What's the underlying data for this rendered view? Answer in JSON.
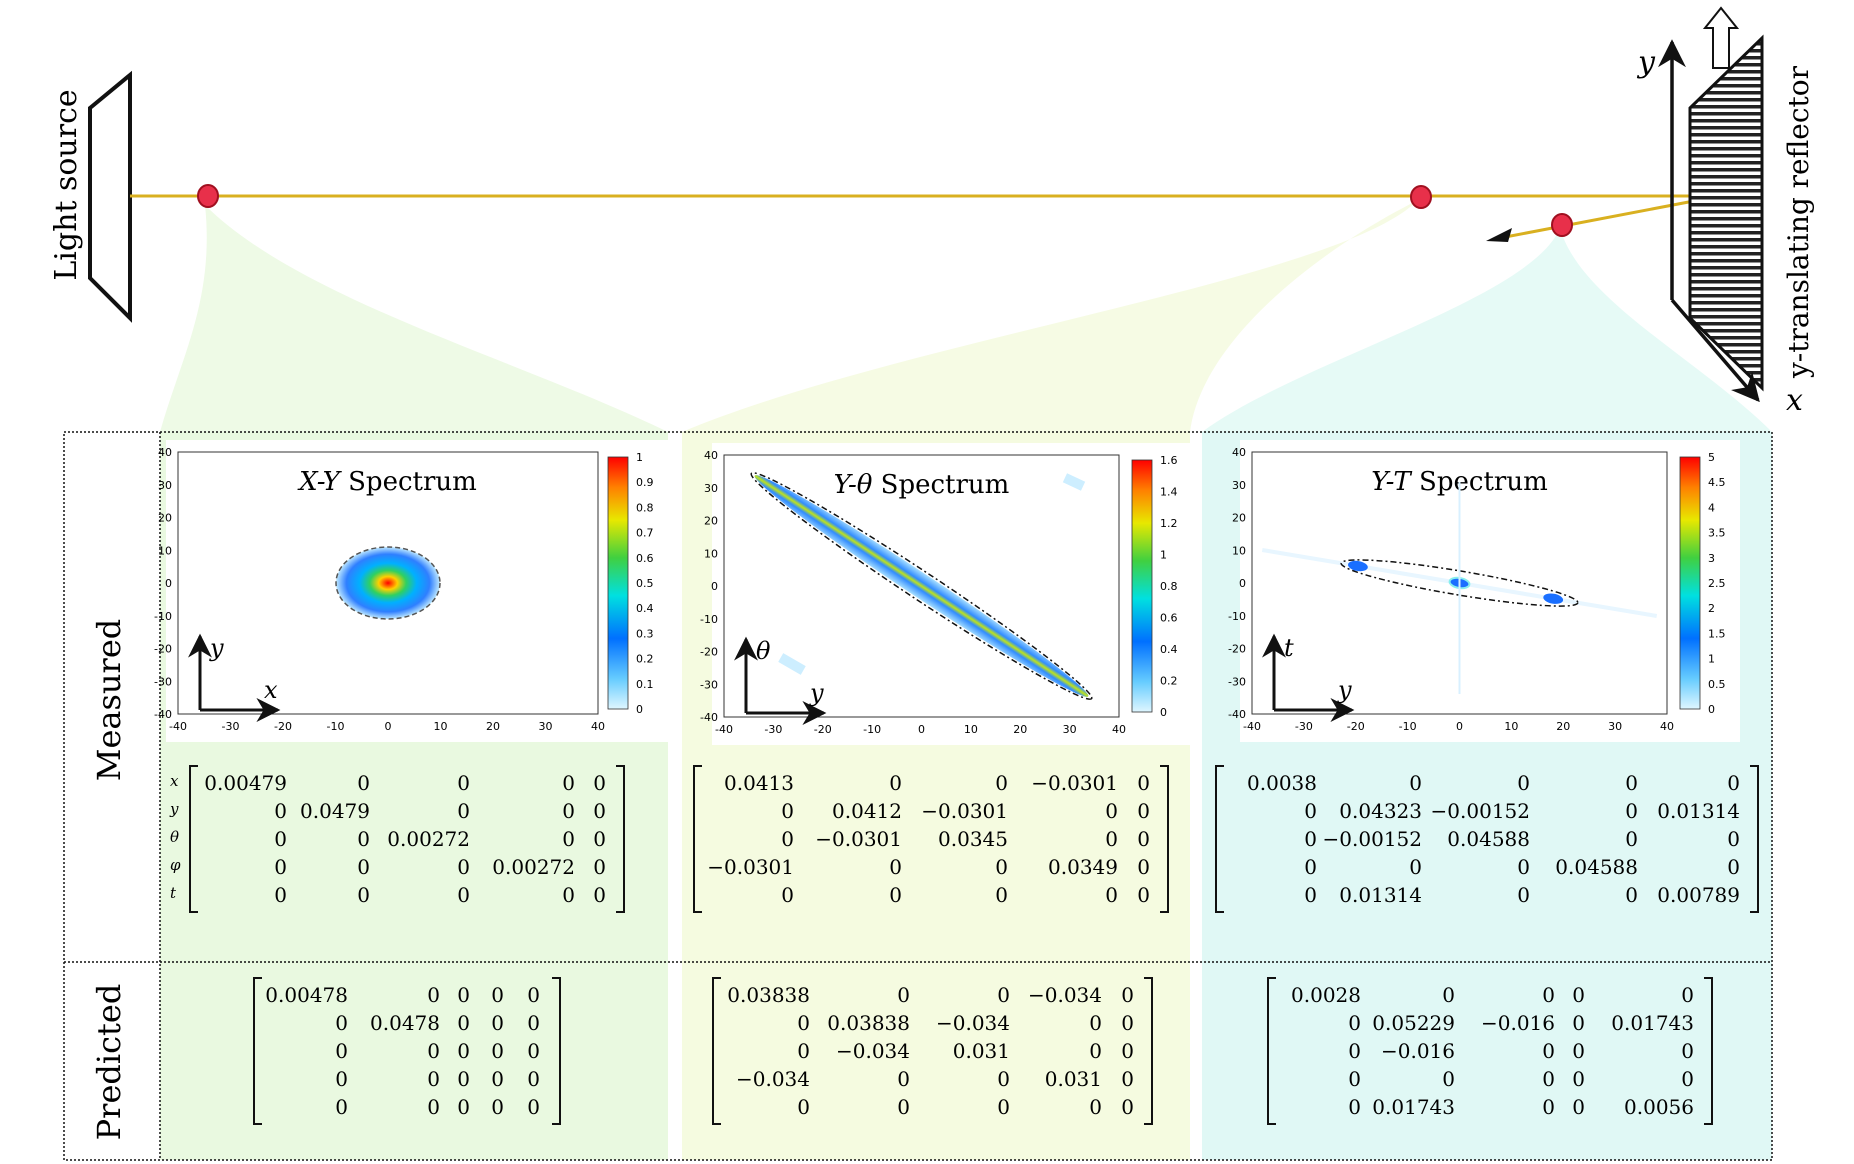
{
  "setup": {
    "light_source_label": "Light source",
    "reflector_label": "y-translating reflector",
    "axis_y": "y",
    "axis_x": "x"
  },
  "rows": {
    "measured_label": "Measured",
    "predicted_label": "Predicted"
  },
  "matrix_row_labels": [
    "x",
    "y",
    "θ",
    "φ",
    "t"
  ],
  "panels": [
    {
      "title_italic": "X-Y",
      "title_rest": " Spectrum",
      "colorbar_ticks": [
        "0",
        "0.1",
        "0.2",
        "0.3",
        "0.4",
        "0.5",
        "0.6",
        "0.7",
        "0.8",
        "0.9",
        "1"
      ],
      "axis_ticks": [
        "-40",
        "-30",
        "-20",
        "-10",
        "0",
        "10",
        "20",
        "30",
        "40"
      ],
      "arrow_h": "x",
      "arrow_v": "y",
      "measured_matrix": [
        [
          "0.00479",
          "0",
          "0",
          "0",
          "0"
        ],
        [
          "0",
          "0.0479",
          "0",
          "0",
          "0"
        ],
        [
          "0",
          "0",
          "0.00272",
          "0",
          "0"
        ],
        [
          "0",
          "0",
          "0",
          "0.00272",
          "0"
        ],
        [
          "0",
          "0",
          "0",
          "0",
          "0"
        ]
      ],
      "predicted_matrix": [
        [
          "0.00478",
          "0",
          "0",
          "0",
          "0"
        ],
        [
          "0",
          "0.0478",
          "0",
          "0",
          "0"
        ],
        [
          "0",
          "0",
          "0",
          "0",
          "0"
        ],
        [
          "0",
          "0",
          "0",
          "0",
          "0"
        ],
        [
          "0",
          "0",
          "0",
          "0",
          "0"
        ]
      ],
      "tint": "#e9f9e0"
    },
    {
      "title_italic": "Y-θ",
      "title_rest": " Spectrum",
      "colorbar_ticks": [
        "0",
        "0.2",
        "0.4",
        "0.6",
        "0.8",
        "1",
        "1.2",
        "1.4",
        "1.6"
      ],
      "axis_ticks": [
        "-40",
        "-30",
        "-20",
        "-10",
        "0",
        "10",
        "20",
        "30",
        "40"
      ],
      "arrow_h": "y",
      "arrow_v": "θ",
      "measured_matrix": [
        [
          "0.0413",
          "0",
          "0",
          "−0.0301",
          "0"
        ],
        [
          "0",
          "0.0412",
          "−0.0301",
          "0",
          "0"
        ],
        [
          "0",
          "−0.0301",
          "0.0345",
          "0",
          "0"
        ],
        [
          "−0.0301",
          "0",
          "0",
          "0.0349",
          "0"
        ],
        [
          "0",
          "0",
          "0",
          "0",
          "0"
        ]
      ],
      "predicted_matrix": [
        [
          "0.03838",
          "0",
          "0",
          "−0.034",
          "0"
        ],
        [
          "0",
          "0.03838",
          "−0.034",
          "0",
          "0"
        ],
        [
          "0",
          "−0.034",
          "0.031",
          "0",
          "0"
        ],
        [
          "−0.034",
          "0",
          "0",
          "0.031",
          "0"
        ],
        [
          "0",
          "0",
          "0",
          "0",
          "0"
        ]
      ],
      "tint": "#f5fbe0"
    },
    {
      "title_italic": "Y-T",
      "title_rest": " Spectrum",
      "colorbar_ticks": [
        "0",
        "0.5",
        "1",
        "1.5",
        "2",
        "2.5",
        "3",
        "3.5",
        "4",
        "4.5",
        "5"
      ],
      "axis_ticks": [
        "-40",
        "-30",
        "-20",
        "-10",
        "0",
        "10",
        "20",
        "30",
        "40"
      ],
      "arrow_h": "y",
      "arrow_v": "t",
      "measured_matrix": [
        [
          "0.0038",
          "0",
          "0",
          "0",
          "0"
        ],
        [
          "0",
          "0.04323",
          "−0.00152",
          "0",
          "0.01314"
        ],
        [
          "0",
          "−0.00152",
          "0.04588",
          "0",
          "0"
        ],
        [
          "0",
          "0",
          "0",
          "0.04588",
          "0"
        ],
        [
          "0",
          "0.01314",
          "0",
          "0",
          "0.00789"
        ]
      ],
      "predicted_matrix": [
        [
          "0.0028",
          "0",
          "0",
          "0",
          "0"
        ],
        [
          "0",
          "0.05229",
          "−0.016",
          "0",
          "0.01743"
        ],
        [
          "0",
          "−0.016",
          "0",
          "0",
          "0"
        ],
        [
          "0",
          "0",
          "0",
          "0",
          "0"
        ],
        [
          "0",
          "0.01743",
          "0",
          "0",
          "0.0056"
        ]
      ],
      "tint": "#e0f8f5"
    }
  ],
  "colors": {
    "beam": "#d9b020",
    "probe_point": "#e8304a",
    "frame": "#111111"
  }
}
